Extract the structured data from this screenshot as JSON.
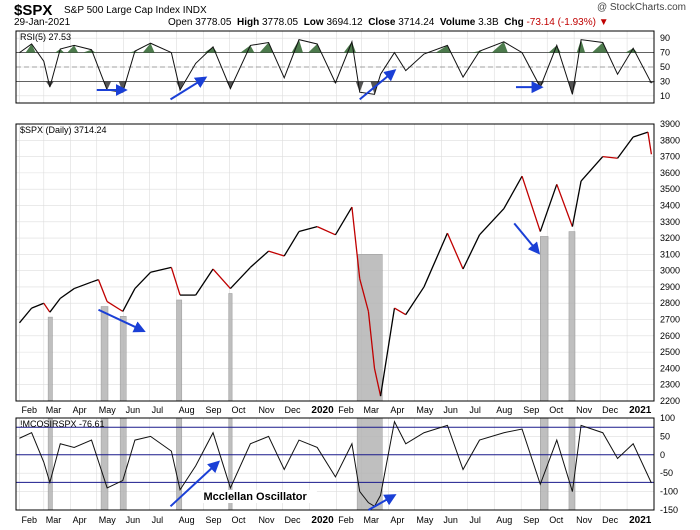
{
  "header": {
    "ticker": "$SPX",
    "name": "S&P 500 Large Cap Index",
    "exchange": "INDX",
    "date": "29-Jan-2021",
    "open_label": "Open",
    "open": "3778.05",
    "high_label": "High",
    "high": "3778.05",
    "low_label": "Low",
    "low": "3694.12",
    "close_label": "Close",
    "close": "3714.24",
    "volume_label": "Volume",
    "volume": "3.3B",
    "chg_label": "Chg",
    "chg": "-73.14 (-1.93%)",
    "credit": "@ StockCharts.com"
  },
  "colors": {
    "price_up": "#000000",
    "price_down": "#c00000",
    "highlight": "#b4b4b4",
    "arrow": "#1a3fd6",
    "rsi_fill_hi": "#4c7a4c",
    "rsi_fill_lo": "#555555",
    "grid": "#dddddd",
    "ref_line": "#1a1a8c"
  },
  "chart_data": [
    {
      "type": "line",
      "panel": "rsi",
      "legend": "RSI(5) 27.53",
      "ylim": [
        0,
        100
      ],
      "yticks": [
        10,
        30,
        50,
        70,
        90
      ],
      "reference_lines": [
        30,
        50,
        70
      ],
      "x": [
        "2019-02-01",
        "2019-02-15",
        "2019-03-01",
        "2019-03-08",
        "2019-03-20",
        "2019-04-05",
        "2019-04-25",
        "2019-05-13",
        "2019-05-31",
        "2019-06-14",
        "2019-07-02",
        "2019-07-26",
        "2019-08-05",
        "2019-08-23",
        "2019-09-12",
        "2019-10-02",
        "2019-10-25",
        "2019-11-15",
        "2019-12-03",
        "2019-12-20",
        "2020-01-10",
        "2020-01-31",
        "2020-02-19",
        "2020-02-28",
        "2020-03-16",
        "2020-03-23",
        "2020-04-08",
        "2020-04-21",
        "2020-05-12",
        "2020-06-08",
        "2020-06-26",
        "2020-07-15",
        "2020-08-12",
        "2020-09-02",
        "2020-09-23",
        "2020-10-12",
        "2020-10-30",
        "2020-11-09",
        "2020-12-04",
        "2020-12-21",
        "2021-01-08",
        "2021-01-29"
      ],
      "values": [
        70,
        82,
        58,
        22,
        75,
        80,
        74,
        18,
        15,
        72,
        83,
        70,
        18,
        55,
        78,
        20,
        80,
        84,
        35,
        88,
        82,
        28,
        85,
        15,
        12,
        40,
        70,
        45,
        68,
        80,
        36,
        72,
        85,
        70,
        22,
        80,
        12,
        88,
        84,
        40,
        76,
        27.53
      ]
    },
    {
      "type": "line",
      "panel": "price",
      "legend": "$SPX (Daily) 3714.24",
      "ylim": [
        2200,
        3900
      ],
      "yticks": [
        2200,
        2300,
        2400,
        2500,
        2600,
        2700,
        2800,
        2900,
        3000,
        3100,
        3200,
        3300,
        3400,
        3500,
        3600,
        3700,
        3800,
        3900
      ],
      "x": [
        "2019-02-01",
        "2019-02-15",
        "2019-03-01",
        "2019-03-08",
        "2019-03-20",
        "2019-04-05",
        "2019-04-25",
        "2019-05-03",
        "2019-05-13",
        "2019-05-31",
        "2019-06-14",
        "2019-07-02",
        "2019-07-26",
        "2019-08-05",
        "2019-08-23",
        "2019-09-12",
        "2019-10-02",
        "2019-10-25",
        "2019-11-15",
        "2019-12-03",
        "2019-12-20",
        "2020-01-10",
        "2020-01-31",
        "2020-02-19",
        "2020-02-28",
        "2020-03-09",
        "2020-03-16",
        "2020-03-23",
        "2020-04-08",
        "2020-04-21",
        "2020-05-12",
        "2020-06-08",
        "2020-06-26",
        "2020-07-15",
        "2020-08-12",
        "2020-09-02",
        "2020-09-23",
        "2020-10-12",
        "2020-10-30",
        "2020-11-09",
        "2020-12-04",
        "2020-12-21",
        "2021-01-08",
        "2021-01-25",
        "2021-01-29"
      ],
      "values": [
        2680,
        2770,
        2800,
        2745,
        2830,
        2890,
        2930,
        2945,
        2810,
        2750,
        2890,
        2990,
        3020,
        2850,
        2850,
        3010,
        2890,
        3020,
        3120,
        3090,
        3240,
        3270,
        3220,
        3390,
        2950,
        2750,
        2400,
        2230,
        2770,
        2730,
        2900,
        3230,
        3010,
        3220,
        3380,
        3580,
        3240,
        3530,
        3270,
        3550,
        3700,
        3690,
        3820,
        3850,
        3714.24
      ]
    },
    {
      "type": "line",
      "panel": "oscillator",
      "legend": "!MCOSIRSPX -76.61",
      "annotation": "Mcclellan Oscillator",
      "ylim": [
        -150,
        100
      ],
      "yticks": [
        -150,
        -100,
        -50,
        0,
        50,
        100
      ],
      "reference_lines": [
        -75,
        0,
        75
      ],
      "x": [
        "2019-02-01",
        "2019-02-15",
        "2019-03-01",
        "2019-03-08",
        "2019-03-20",
        "2019-04-05",
        "2019-04-25",
        "2019-05-13",
        "2019-05-31",
        "2019-06-14",
        "2019-07-02",
        "2019-07-26",
        "2019-08-05",
        "2019-08-23",
        "2019-09-12",
        "2019-10-02",
        "2019-10-25",
        "2019-11-15",
        "2019-12-03",
        "2019-12-20",
        "2020-01-10",
        "2020-01-31",
        "2020-02-19",
        "2020-02-28",
        "2020-03-09",
        "2020-03-16",
        "2020-03-23",
        "2020-04-08",
        "2020-04-21",
        "2020-05-12",
        "2020-06-08",
        "2020-06-26",
        "2020-07-15",
        "2020-08-12",
        "2020-09-02",
        "2020-09-23",
        "2020-10-12",
        "2020-10-30",
        "2020-11-09",
        "2020-12-04",
        "2020-12-21",
        "2021-01-08",
        "2021-01-29"
      ],
      "values": [
        45,
        60,
        -20,
        -75,
        30,
        20,
        40,
        -90,
        -70,
        40,
        50,
        10,
        -95,
        -30,
        60,
        -90,
        30,
        50,
        -40,
        40,
        20,
        -60,
        30,
        -100,
        -130,
        -140,
        -110,
        90,
        30,
        60,
        80,
        -40,
        40,
        60,
        70,
        -80,
        40,
        -100,
        80,
        60,
        -10,
        30,
        -76.61
      ]
    },
    {
      "type": "table",
      "panel": "time_axis",
      "categories": [
        "Feb",
        "Mar",
        "Apr",
        "May",
        "Jun",
        "Jul",
        "Aug",
        "Sep",
        "Oct",
        "Nov",
        "Dec",
        "2020",
        "Feb",
        "Mar",
        "Apr",
        "May",
        "Jun",
        "Jul",
        "Aug",
        "Sep",
        "Oct",
        "Nov",
        "Dec",
        "2021"
      ],
      "tick_dates": [
        "2019-02-01",
        "2019-03-01",
        "2019-04-01",
        "2019-05-01",
        "2019-06-01",
        "2019-07-01",
        "2019-08-01",
        "2019-09-01",
        "2019-10-01",
        "2019-11-01",
        "2019-12-01",
        "2020-01-01",
        "2020-02-01",
        "2020-03-01",
        "2020-04-01",
        "2020-05-01",
        "2020-06-01",
        "2020-07-01",
        "2020-08-01",
        "2020-09-01",
        "2020-10-01",
        "2020-11-01",
        "2020-12-01",
        "2021-01-01"
      ],
      "highlight_periods": [
        [
          "2019-03-06",
          "2019-03-11"
        ],
        [
          "2019-05-06",
          "2019-05-14"
        ],
        [
          "2019-05-28",
          "2019-06-04"
        ],
        [
          "2019-08-01",
          "2019-08-07"
        ],
        [
          "2019-09-30",
          "2019-10-04"
        ],
        [
          "2020-02-25",
          "2020-03-25"
        ],
        [
          "2020-09-23",
          "2020-10-02"
        ],
        [
          "2020-10-26",
          "2020-11-02"
        ]
      ],
      "arrows": [
        {
          "panel": "rsi",
          "from": [
            "2019-05-01",
            18
          ],
          "to": [
            "2019-06-03",
            18
          ]
        },
        {
          "panel": "rsi",
          "from": [
            "2019-07-25",
            5
          ],
          "to": [
            "2019-09-03",
            35
          ]
        },
        {
          "panel": "rsi",
          "from": [
            "2020-02-28",
            5
          ],
          "to": [
            "2020-04-08",
            45
          ]
        },
        {
          "panel": "rsi",
          "from": [
            "2020-08-26",
            22
          ],
          "to": [
            "2020-09-24",
            22
          ]
        },
        {
          "panel": "price",
          "from": [
            "2019-05-03",
            2760
          ],
          "to": [
            "2019-06-24",
            2630
          ]
        },
        {
          "panel": "price",
          "from": [
            "2020-08-24",
            3290
          ],
          "to": [
            "2020-09-21",
            3110
          ]
        },
        {
          "panel": "oscillator",
          "from": [
            "2019-07-25",
            -140
          ],
          "to": [
            "2019-09-18",
            -20
          ]
        },
        {
          "panel": "oscillator",
          "from": [
            "2020-03-09",
            -150
          ],
          "to": [
            "2020-04-08",
            -110
          ]
        }
      ]
    }
  ]
}
